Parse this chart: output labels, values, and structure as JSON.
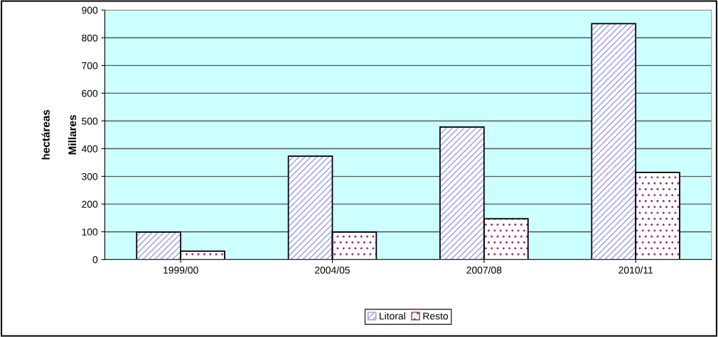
{
  "chart_data": {
    "type": "bar",
    "ylabel": "hectáreas",
    "annotations": [
      "Millares"
    ],
    "categories": [
      "1999/00",
      "2004/05",
      "2007/08",
      "2010/11"
    ],
    "series": [
      {
        "name": "Litoral",
        "color": "#9999ff",
        "values": [
          99,
          373,
          478,
          851
        ]
      },
      {
        "name": "Resto",
        "color": "#993366",
        "values": [
          30,
          99,
          147,
          314
        ]
      }
    ],
    "ylim": [
      0,
      900
    ],
    "yticks": [
      0,
      100,
      200,
      300,
      400,
      500,
      600,
      700,
      800,
      900
    ],
    "grid": "y",
    "legend": "bottom"
  }
}
